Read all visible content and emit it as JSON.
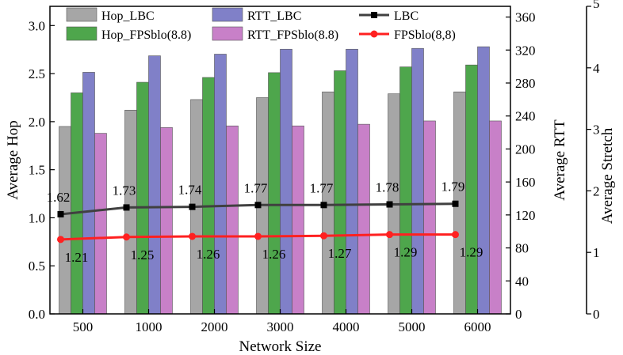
{
  "chart_data": {
    "type": "bar",
    "categories": [
      "500",
      "1000",
      "2000",
      "3000",
      "4000",
      "5000",
      "6000"
    ],
    "xlabel": "Network Size",
    "axes": {
      "hop": {
        "label": "Average Hop",
        "ylim": [
          0,
          3.2
        ],
        "ticks": [
          "0.0",
          "0.5",
          "1.0",
          "1.5",
          "2.0",
          "2.5",
          "3.0"
        ]
      },
      "rtt": {
        "label": "Average RTT",
        "ylim": [
          0,
          373
        ],
        "ticks": [
          "0",
          "40",
          "80",
          "120",
          "160",
          "200",
          "240",
          "280",
          "320",
          "360"
        ]
      },
      "stretch": {
        "label": "Average Stretch",
        "ylim": [
          0,
          5
        ],
        "ticks": [
          "0",
          "1",
          "2",
          "3",
          "4",
          "5"
        ]
      }
    },
    "series": [
      {
        "name": "Hop_LBC",
        "kind": "bar",
        "axis": "hop",
        "color": "#a6a6a6",
        "values": [
          1.95,
          2.12,
          2.23,
          2.25,
          2.31,
          2.29,
          2.31
        ]
      },
      {
        "name": "Hop_FPSblo(8.8)",
        "kind": "bar",
        "axis": "hop",
        "color": "#4ea64c",
        "values": [
          2.3,
          2.41,
          2.46,
          2.51,
          2.53,
          2.57,
          2.59
        ]
      },
      {
        "name": "RTT_LBC",
        "kind": "bar",
        "axis": "rtt",
        "color": "#8080c8",
        "values": [
          293,
          313,
          315,
          321,
          321,
          322,
          324
        ]
      },
      {
        "name": "RTT_FPSblo(8.8)",
        "kind": "bar",
        "axis": "rtt",
        "color": "#c880c8",
        "values": [
          219,
          226,
          228,
          228,
          230,
          234,
          234
        ]
      },
      {
        "name": "LBC",
        "kind": "line",
        "axis": "stretch",
        "color": "#404040",
        "values": [
          1.62,
          1.73,
          1.74,
          1.77,
          1.77,
          1.78,
          1.79
        ],
        "labels": [
          "1.62",
          "1.73",
          "1.74",
          "1.77",
          "1.77",
          "1.78",
          "1.79"
        ]
      },
      {
        "name": "FPSblo(8,8)",
        "kind": "line",
        "axis": "stretch",
        "color": "#ff2020",
        "values": [
          1.21,
          1.25,
          1.26,
          1.26,
          1.27,
          1.29,
          1.29
        ],
        "labels": [
          "1.21",
          "1.25",
          "1.26",
          "1.26",
          "1.27",
          "1.29",
          "1.29"
        ]
      }
    ],
    "legend": "top"
  }
}
